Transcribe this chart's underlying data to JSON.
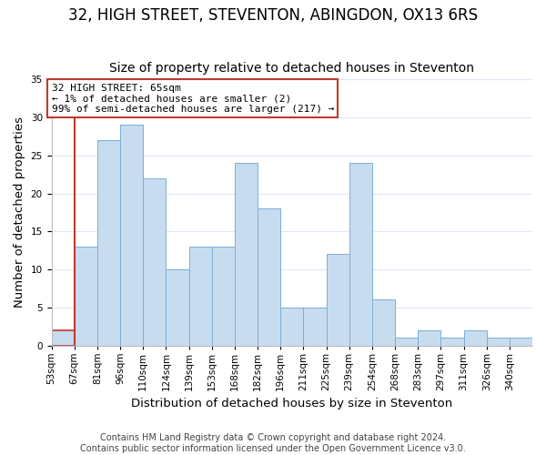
{
  "title": "32, HIGH STREET, STEVENTON, ABINGDON, OX13 6RS",
  "subtitle": "Size of property relative to detached houses in Steventon",
  "xlabel": "Distribution of detached houses by size in Steventon",
  "ylabel": "Number of detached properties",
  "bar_values": [
    2,
    13,
    27,
    29,
    22,
    10,
    13,
    13,
    24,
    18,
    5,
    5,
    12,
    24,
    6,
    1,
    2,
    1,
    2,
    1,
    1
  ],
  "bar_labels": [
    "53sqm",
    "67sqm",
    "81sqm",
    "96sqm",
    "110sqm",
    "124sqm",
    "139sqm",
    "153sqm",
    "168sqm",
    "182sqm",
    "196sqm",
    "211sqm",
    "225sqm",
    "239sqm",
    "254sqm",
    "268sqm",
    "283sqm",
    "297sqm",
    "311sqm",
    "326sqm",
    "340sqm"
  ],
  "bar_color": "#c8dcf0",
  "bar_edge_color": "#7aafd4",
  "highlight_edge_color": "#c0392b",
  "ylim": [
    0,
    35
  ],
  "yticks": [
    0,
    5,
    10,
    15,
    20,
    25,
    30,
    35
  ],
  "annotation_text": "32 HIGH STREET: 65sqm\n← 1% of detached houses are smaller (2)\n99% of semi-detached houses are larger (217) →",
  "annotation_box_color": "#ffffff",
  "annotation_box_edge_color": "#c0392b",
  "footer_line1": "Contains HM Land Registry data © Crown copyright and database right 2024.",
  "footer_line2": "Contains public sector information licensed under the Open Government Licence v3.0.",
  "background_color": "#ffffff",
  "grid_color": "#dde8f5",
  "title_fontsize": 12,
  "subtitle_fontsize": 10,
  "axis_label_fontsize": 9.5,
  "tick_fontsize": 7.5,
  "annotation_fontsize": 8,
  "footer_fontsize": 7
}
